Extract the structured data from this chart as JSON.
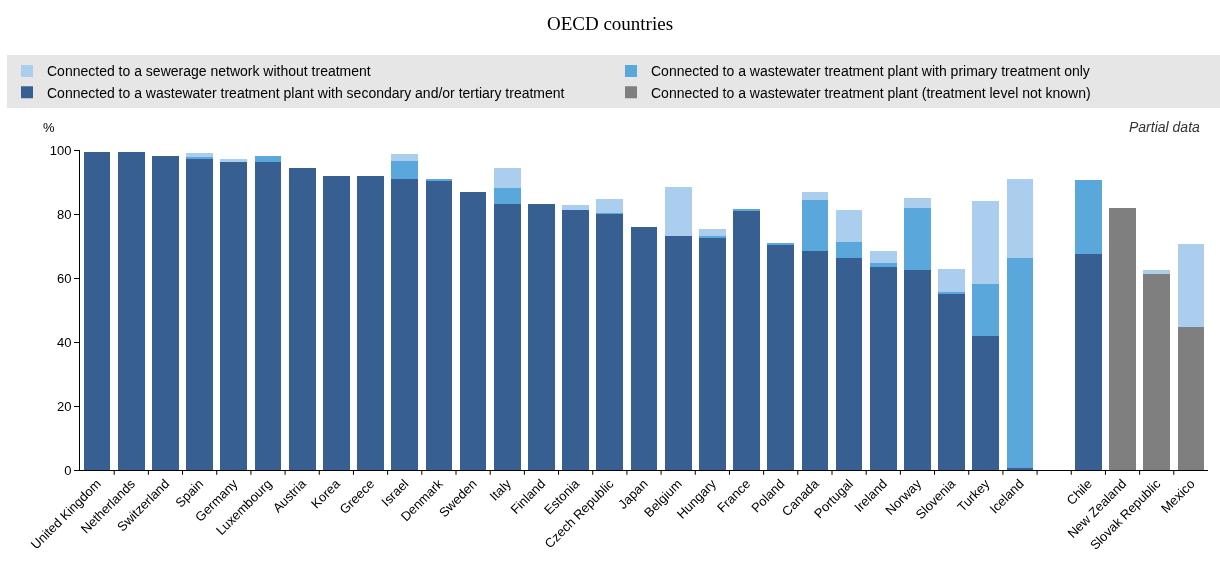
{
  "chart_data": {
    "type": "bar",
    "stacked": true,
    "title": "OECD countries",
    "ylabel": "%",
    "annotations": [
      {
        "text": "Partial data"
      }
    ],
    "categories": [
      "United Kingdom",
      "Netherlands",
      "Switzerland",
      "Spain",
      "Germany",
      "Luxembourg",
      "Austria",
      "Korea",
      "Greece",
      "Israel",
      "Denmark",
      "Sweden",
      "Italy",
      "Finland",
      "Estonia",
      "Czech Republic",
      "Japan",
      "Belgium",
      "Hungary",
      "France",
      "Poland",
      "Canada",
      "Portugal",
      "Ireland",
      "Norway",
      "Slovenia",
      "Turkey",
      "Iceland",
      null,
      "Chile",
      "New Zealand",
      "Slovak Republic",
      "Mexico"
    ],
    "series": [
      {
        "name": "Connected to a wastewater treatment plant (treatment level not known)",
        "color": "#7f7f7f",
        "values": [
          0,
          0,
          0,
          0,
          0,
          0,
          0,
          0,
          0,
          0,
          0,
          0,
          0,
          0,
          0,
          0,
          0,
          0,
          0,
          0,
          0,
          0,
          0,
          0,
          0,
          0,
          0,
          0,
          null,
          0,
          81.8,
          61.2,
          44.6
        ]
      },
      {
        "name": "Connected to a wastewater treatment plant with secondary and/or tertiary treatment",
        "color": "#375f91",
        "values": [
          99.5,
          99.4,
          98,
          97.3,
          96.3,
          96.3,
          94.5,
          92,
          92,
          91,
          90.2,
          87,
          83,
          83,
          81.3,
          80,
          76,
          73,
          72.5,
          80.8,
          70.3,
          68.4,
          66.2,
          63.5,
          62.5,
          55,
          42,
          0.5,
          null,
          67.5,
          0,
          0,
          0
        ]
      },
      {
        "name": "Connected to a wastewater treatment plant with primary treatment only",
        "color": "#5aa7dc",
        "values": [
          0,
          0,
          0,
          0.5,
          0,
          1.7,
          0,
          0,
          0,
          5.5,
          0.7,
          0,
          5,
          0,
          0,
          0.3,
          0,
          0,
          0.5,
          0.7,
          0.5,
          15.9,
          5,
          1.3,
          19.5,
          0.5,
          16.2,
          65.7,
          null,
          23.2,
          0,
          0,
          0
        ]
      },
      {
        "name": "Connected to a sewerage network without treatment",
        "color": "#abcdee",
        "values": [
          null,
          0,
          null,
          1.3,
          0.8,
          0,
          0,
          null,
          0,
          2.3,
          0,
          0,
          6.5,
          0,
          1.5,
          4.5,
          0,
          15.5,
          2.2,
          0,
          0,
          2.6,
          10.2,
          3.5,
          3,
          7.3,
          25.8,
          24.8,
          null,
          0,
          0,
          1.2,
          26
        ]
      }
    ],
    "ylim": [
      0,
      100
    ],
    "yticks": [
      0,
      20,
      40,
      60,
      80,
      100
    ],
    "grid": false,
    "legend": "top"
  }
}
